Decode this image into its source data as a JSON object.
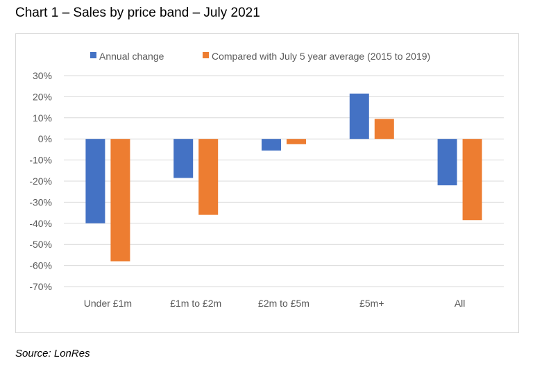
{
  "title": "Chart 1 – Sales by price band – July 2021",
  "source": "Source: LonRes",
  "colors": {
    "annual": "#4472c4",
    "average": "#ed7d31",
    "grid": "#d9d9d9"
  },
  "chart_data": {
    "type": "bar",
    "categories": [
      "Under £1m",
      "£1m to £2m",
      "£2m to £5m",
      "£5m+",
      "All"
    ],
    "series": [
      {
        "name": "Annual change",
        "values": [
          -40,
          -18.5,
          -5.5,
          21.5,
          -22
        ]
      },
      {
        "name": "Compared with July 5 year average (2015 to 2019)",
        "values": [
          -58,
          -36,
          -2.5,
          9.5,
          -38.5
        ]
      }
    ],
    "ylim": [
      -70,
      30
    ],
    "yticks": [
      30,
      20,
      10,
      0,
      -10,
      -20,
      -30,
      -40,
      -50,
      -60,
      -70
    ],
    "ytick_labels": [
      "30%",
      "20%",
      "10%",
      "0%",
      "-10%",
      "-20%",
      "-30%",
      "-40%",
      "-50%",
      "-60%",
      "-70%"
    ],
    "legend_position": "top",
    "grid": true
  }
}
